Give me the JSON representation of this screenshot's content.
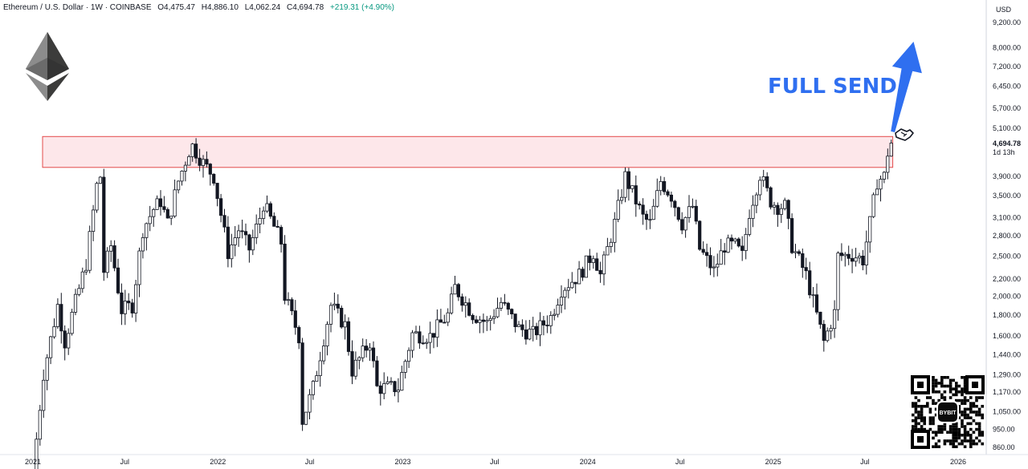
{
  "header": {
    "symbol": "Ethereum / U.S. Dollar · 1W · COINBASE",
    "open": "O4,475.47",
    "high": "H4,886.10",
    "low": "L4,062.24",
    "close": "C4,694.78",
    "change": "+219.31 (+4.90%)"
  },
  "annotation": {
    "text": "FULL SEND"
  },
  "qr": {
    "brand": "BYBIT"
  },
  "colors": {
    "zone_fill": "#fde7ea",
    "zone_stroke": "#e34b4b",
    "arrow": "#2f6ff0",
    "candle": "#131722"
  },
  "chart_data": {
    "type": "candlestick",
    "title": "",
    "currency_label": "USD",
    "y_scale": "log",
    "ylim": [
      820,
      10000
    ],
    "y_ticks": [
      "9,200.00",
      "8,000.00",
      "7,200.00",
      "6,450.00",
      "5,700.00",
      "5,100.00",
      "3,900.00",
      "3,500.00",
      "3,100.00",
      "2,800.00",
      "2,500.00",
      "2,200.00",
      "2,000.00",
      "1,800.00",
      "1,600.00",
      "1,440.00",
      "1,290.00",
      "1,170.00",
      "1,050.00",
      "950.00",
      "860.00"
    ],
    "x_ticks": [
      {
        "label": "2021",
        "date": "2021-01-01"
      },
      {
        "label": "Jul",
        "date": "2021-07-01"
      },
      {
        "label": "2022",
        "date": "2022-01-01"
      },
      {
        "label": "Jul",
        "date": "2022-07-01"
      },
      {
        "label": "2023",
        "date": "2023-01-01"
      },
      {
        "label": "Jul",
        "date": "2023-07-01"
      },
      {
        "label": "2024",
        "date": "2024-01-01"
      },
      {
        "label": "Jul",
        "date": "2024-07-01"
      },
      {
        "label": "2025",
        "date": "2025-01-01"
      },
      {
        "label": "Jul",
        "date": "2025-07-01"
      },
      {
        "label": "2026",
        "date": "2026-01-01"
      }
    ],
    "last_price": "4,694.78",
    "countdown": "1d 13h",
    "resistance_zone": {
      "low": 4100,
      "high": 4870,
      "from": "2021-01-20",
      "to": "2025-08-25"
    },
    "target_arrow": {
      "from_date": "2025-08-25",
      "from_price": 5000,
      "to_date": "2025-10-05",
      "to_price": 9000
    },
    "price_path": [
      [
        "2021-01-01",
        750
      ],
      [
        "2021-01-22",
        1300
      ],
      [
        "2021-02-19",
        1900
      ],
      [
        "2021-03-05",
        1550
      ],
      [
        "2021-03-19",
        1800
      ],
      [
        "2021-04-16",
        2400
      ],
      [
        "2021-05-07",
        3700
      ],
      [
        "2021-05-14",
        3900
      ],
      [
        "2021-05-21",
        2300
      ],
      [
        "2021-06-04",
        2650
      ],
      [
        "2021-06-25",
        1850
      ],
      [
        "2021-07-16",
        1900
      ],
      [
        "2021-08-06",
        2900
      ],
      [
        "2021-08-27",
        3250
      ],
      [
        "2021-09-10",
        3400
      ],
      [
        "2021-09-24",
        3000
      ],
      [
        "2021-10-15",
        3800
      ],
      [
        "2021-11-05",
        4500
      ],
      [
        "2021-11-12",
        4620
      ],
      [
        "2021-12-03",
        4200
      ],
      [
        "2021-12-24",
        3900
      ],
      [
        "2022-01-21",
        2550
      ],
      [
        "2022-02-11",
        2900
      ],
      [
        "2022-03-04",
        2600
      ],
      [
        "2022-03-25",
        3100
      ],
      [
        "2022-04-01",
        3350
      ],
      [
        "2022-05-06",
        2700
      ],
      [
        "2022-05-13",
        2000
      ],
      [
        "2022-06-10",
        1600
      ],
      [
        "2022-06-17",
        1000
      ],
      [
        "2022-07-08",
        1200
      ],
      [
        "2022-08-12",
        1900
      ],
      [
        "2022-09-09",
        1700
      ],
      [
        "2022-09-23",
        1320
      ],
      [
        "2022-10-28",
        1550
      ],
      [
        "2022-11-11",
        1200
      ],
      [
        "2022-12-23",
        1200
      ],
      [
        "2023-01-20",
        1620
      ],
      [
        "2023-02-24",
        1600
      ],
      [
        "2023-03-31",
        1800
      ],
      [
        "2023-04-14",
        2100
      ],
      [
        "2023-05-19",
        1810
      ],
      [
        "2023-06-16",
        1720
      ],
      [
        "2023-07-14",
        1930
      ],
      [
        "2023-08-18",
        1670
      ],
      [
        "2023-09-15",
        1620
      ],
      [
        "2023-10-20",
        1780
      ],
      [
        "2023-11-10",
        2080
      ],
      [
        "2023-12-15",
        2250
      ],
      [
        "2024-01-12",
        2550
      ],
      [
        "2024-01-26",
        2250
      ],
      [
        "2024-02-23",
        3000
      ],
      [
        "2024-03-15",
        3900
      ],
      [
        "2024-04-05",
        3400
      ],
      [
        "2024-04-19",
        3100
      ],
      [
        "2024-05-03",
        3000
      ],
      [
        "2024-05-24",
        3800
      ],
      [
        "2024-06-14",
        3500
      ],
      [
        "2024-07-05",
        3000
      ],
      [
        "2024-07-26",
        3300
      ],
      [
        "2024-08-09",
        2600
      ],
      [
        "2024-09-06",
        2300
      ],
      [
        "2024-09-27",
        2650
      ],
      [
        "2024-10-18",
        2650
      ],
      [
        "2024-11-01",
        2500
      ],
      [
        "2024-11-15",
        3200
      ],
      [
        "2024-12-06",
        3950
      ],
      [
        "2024-12-27",
        3400
      ],
      [
        "2025-01-10",
        3300
      ],
      [
        "2025-01-24",
        3300
      ],
      [
        "2025-02-07",
        2650
      ],
      [
        "2025-03-07",
        2250
      ],
      [
        "2025-03-28",
        1800
      ],
      [
        "2025-04-11",
        1550
      ],
      [
        "2025-05-02",
        1820
      ],
      [
        "2025-05-09",
        2500
      ],
      [
        "2025-06-06",
        2520
      ],
      [
        "2025-06-27",
        2450
      ],
      [
        "2025-07-11",
        3000
      ],
      [
        "2025-07-25",
        3800
      ],
      [
        "2025-08-08",
        3900
      ],
      [
        "2025-08-15",
        4450
      ],
      [
        "2025-08-22",
        4700
      ]
    ]
  }
}
